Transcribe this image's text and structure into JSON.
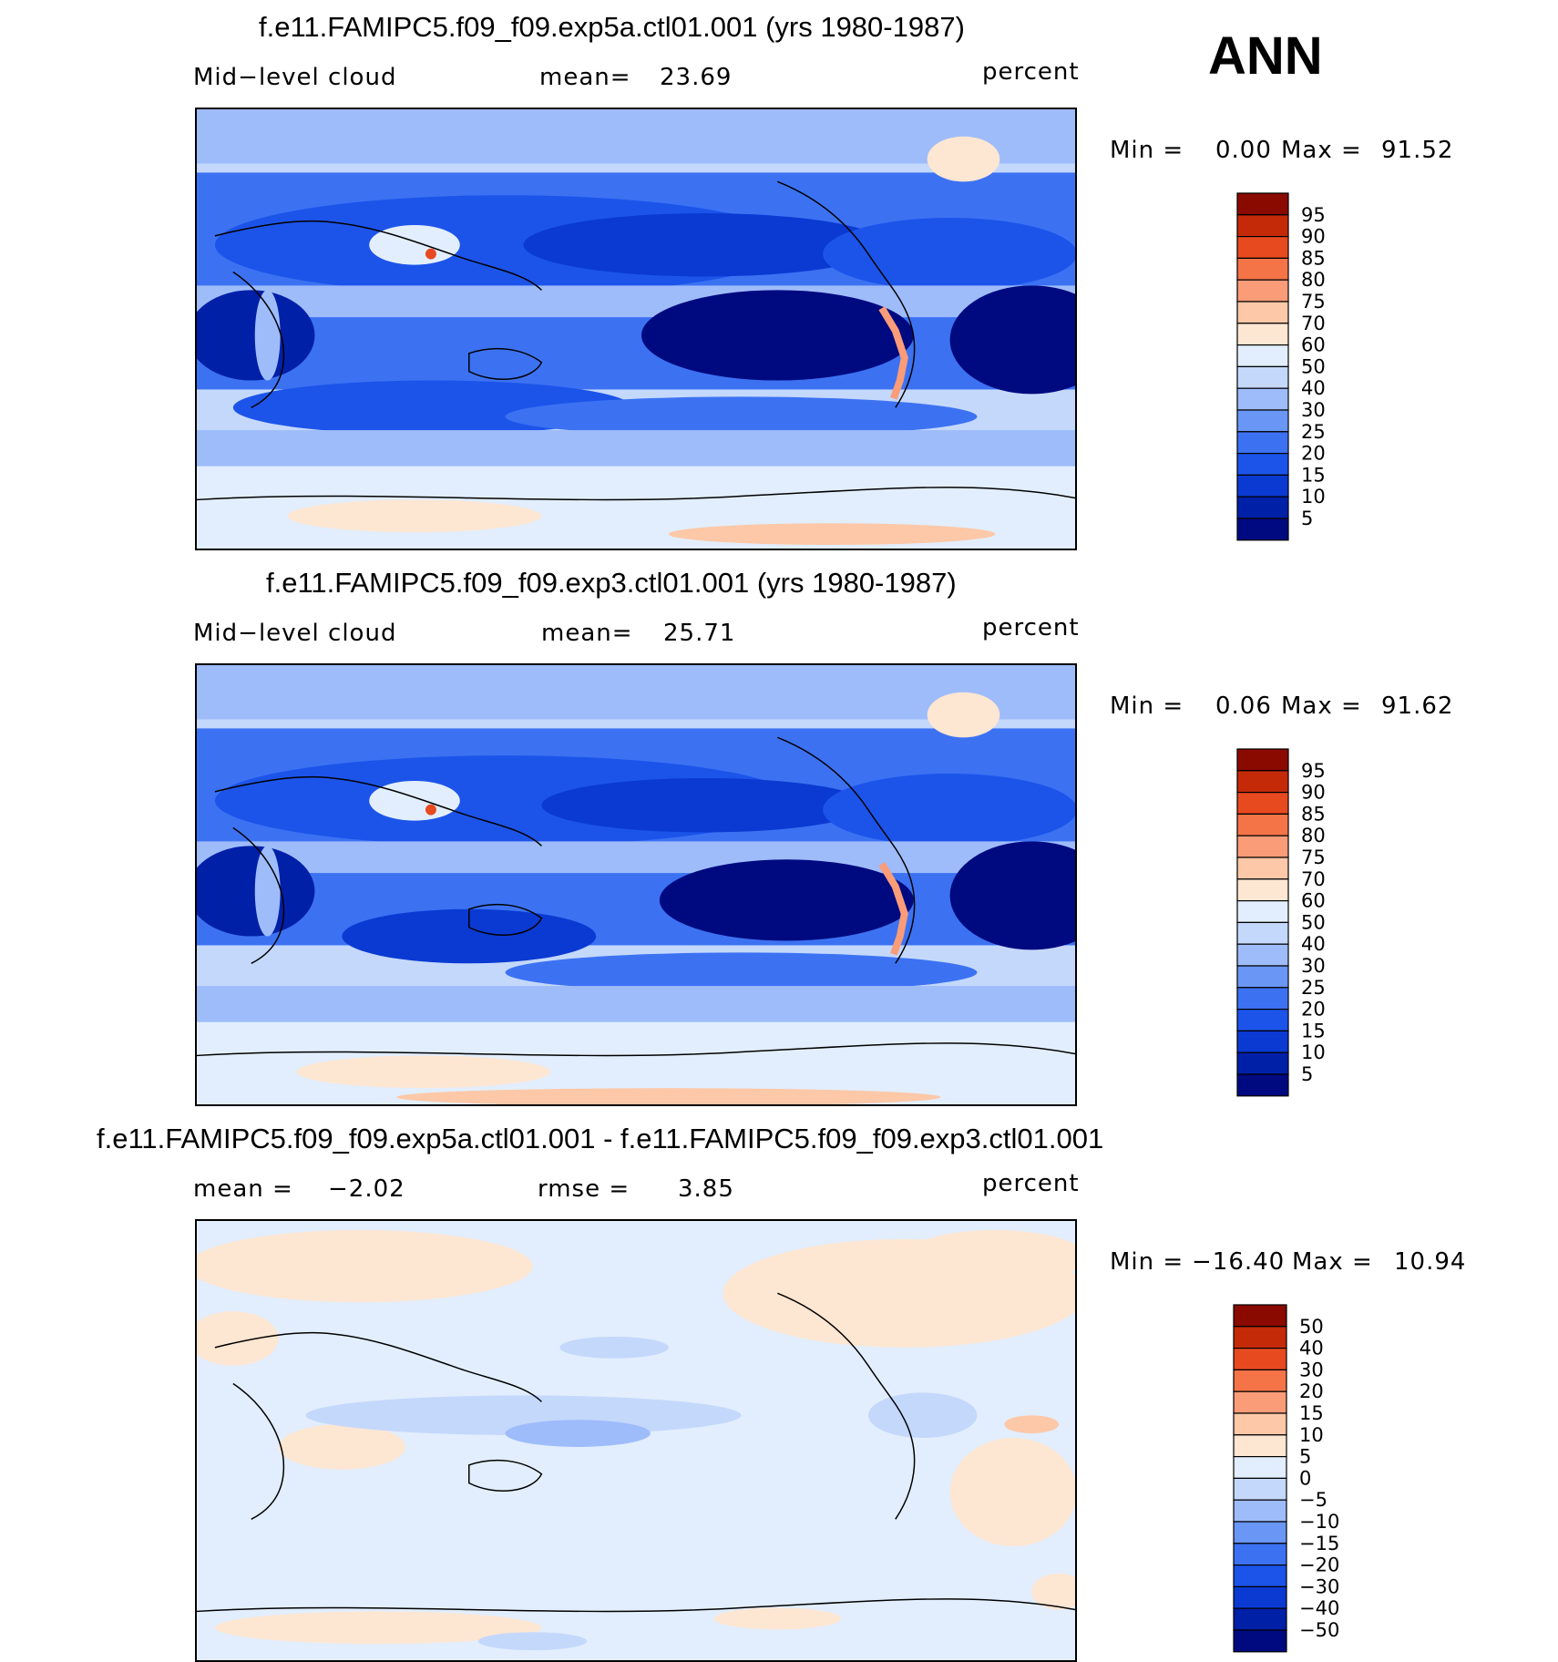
{
  "season_label": "ANN",
  "panels": [
    {
      "title": "f.e11.FAMIPC5.f09_f09.exp5a.ctl01.001 (yrs 1980-1987)",
      "variable": "Mid−level cloud",
      "stat_label": "mean=",
      "stat_value": "23.69",
      "units": "percent",
      "min_label": "Min  =",
      "min_value": "0.00",
      "max_label": "Max  =",
      "max_value": "91.52",
      "colorbar_ticks": [
        "95",
        "90",
        "85",
        "80",
        "75",
        "70",
        "60",
        "50",
        "40",
        "30",
        "25",
        "20",
        "15",
        "10",
        "5"
      ]
    },
    {
      "title": "f.e11.FAMIPC5.f09_f09.exp3.ctl01.001 (yrs 1980-1987)",
      "variable": "Mid−level cloud",
      "stat_label": "mean=",
      "stat_value": "25.71",
      "units": "percent",
      "min_label": "Min  =",
      "min_value": "0.06",
      "max_label": "Max  =",
      "max_value": "91.62",
      "colorbar_ticks": [
        "95",
        "90",
        "85",
        "80",
        "75",
        "70",
        "60",
        "50",
        "40",
        "30",
        "25",
        "20",
        "15",
        "10",
        "5"
      ]
    },
    {
      "title": "f.e11.FAMIPC5.f09_f09.exp5a.ctl01.001 - f.e11.FAMIPC5.f09_f09.exp3.ctl01.001",
      "mean_label": "mean  =",
      "mean_value": "−2.02",
      "rmse_label": "rmse  =",
      "rmse_value": "3.85",
      "units": "percent",
      "min_label": "Min  =",
      "min_value": "−16.40",
      "max_label": "Max  =",
      "max_value": "10.94",
      "colorbar_ticks": [
        "50",
        "40",
        "30",
        "20",
        "15",
        "10",
        "5",
        "0",
        "−5",
        "−10",
        "−15",
        "−20",
        "−30",
        "−40",
        "−50"
      ]
    }
  ],
  "colors": {
    "field_scale": [
      "#000a80",
      "#0020a8",
      "#0a3ad2",
      "#1c54ea",
      "#3c72f2",
      "#6a96f6",
      "#9ebcfa",
      "#c4d8fc",
      "#e2eefd",
      "#fde6d2",
      "#fcc8a8",
      "#fa9c78",
      "#f47448",
      "#e84a20",
      "#c42a08",
      "#8a0a00"
    ],
    "diff_scale": [
      "#000a80",
      "#0020a8",
      "#0a3ad2",
      "#1c54ea",
      "#3c72f2",
      "#6a96f6",
      "#9ebcfa",
      "#c4d8fc",
      "#e2eefd",
      "#fde6d2",
      "#fcc8a8",
      "#fa9c78",
      "#f47448",
      "#e84a20",
      "#c42a08",
      "#8a0a00"
    ]
  }
}
